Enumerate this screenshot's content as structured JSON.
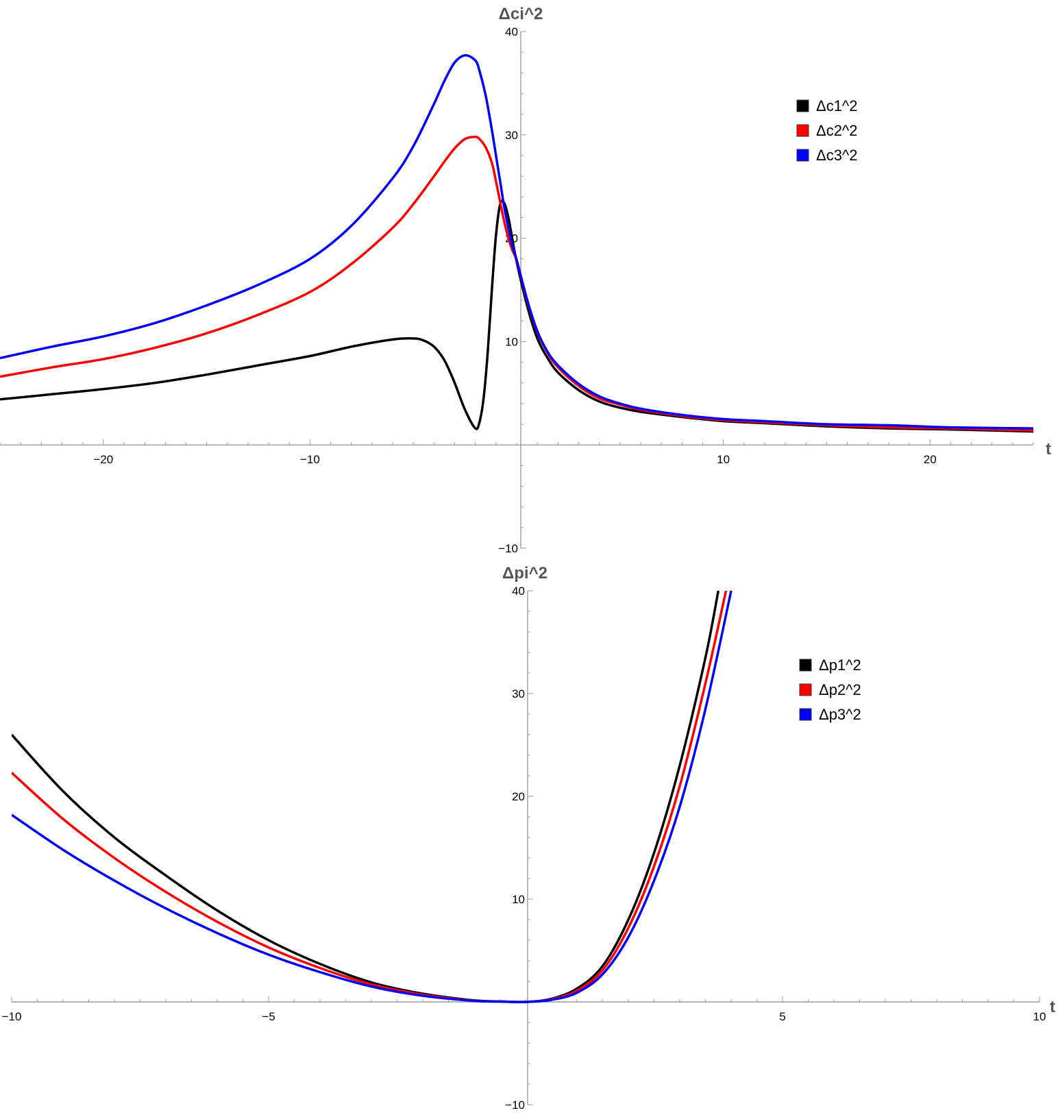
{
  "chart_data": [
    {
      "type": "line",
      "ylabel": "Δci^2",
      "xlabel": "t",
      "xlim": [
        -25,
        25
      ],
      "ylim": [
        -10,
        40
      ],
      "x_ticks": [
        -20,
        -10,
        10,
        20
      ],
      "y_ticks": [
        -10,
        10,
        20,
        30,
        40
      ],
      "legend_position": "top-right",
      "series": [
        {
          "name": "Δc1^2",
          "color": "#000000",
          "x": [
            -25,
            -22.5,
            -20,
            -17.5,
            -15,
            -12.5,
            -10,
            -8,
            -6,
            -5,
            -4.5,
            -4,
            -3.5,
            -3,
            -2.5,
            -2,
            -1.8,
            -1.6,
            -1.4,
            -1.2,
            -1,
            -0.8,
            -0.6,
            -0.4,
            -0.2,
            0,
            0.5,
            1,
            1.5,
            2,
            3,
            4,
            5,
            6,
            8,
            10,
            12,
            15,
            18,
            21,
            25
          ],
          "y": [
            4.4,
            4.9,
            5.4,
            6.0,
            6.8,
            7.7,
            8.6,
            9.5,
            10.2,
            10.3,
            10.1,
            9.5,
            8.2,
            6.0,
            3.4,
            1.6,
            2.2,
            4.5,
            9.0,
            15.0,
            20.3,
            23.3,
            23.4,
            22.0,
            19.8,
            17.7,
            13.5,
            10.3,
            8.4,
            7.0,
            5.3,
            4.2,
            3.6,
            3.2,
            2.7,
            2.3,
            2.1,
            1.8,
            1.6,
            1.5,
            1.3
          ]
        },
        {
          "name": "Δc2^2",
          "color": "#ff0000",
          "x": [
            -25,
            -22.5,
            -20,
            -17.5,
            -15,
            -12.5,
            -10,
            -8,
            -6,
            -5,
            -4,
            -3.5,
            -3,
            -2.5,
            -2,
            -1.8,
            -1.5,
            -1.2,
            -1,
            -0.8,
            -0.6,
            -0.4,
            -0.2,
            0,
            0.5,
            1,
            1.5,
            2,
            3,
            4,
            5,
            6,
            8,
            10,
            12,
            15,
            18,
            21,
            25
          ],
          "y": [
            6.6,
            7.5,
            8.3,
            9.4,
            10.8,
            12.6,
            14.8,
            17.5,
            21.0,
            23.3,
            26.0,
            27.4,
            28.7,
            29.6,
            29.8,
            29.6,
            28.8,
            27.3,
            25.5,
            23.5,
            21.6,
            20.0,
            18.8,
            17.8,
            14.0,
            10.9,
            8.9,
            7.5,
            5.7,
            4.5,
            3.9,
            3.4,
            2.8,
            2.4,
            2.2,
            1.9,
            1.7,
            1.6,
            1.4
          ]
        },
        {
          "name": "Δc3^2",
          "color": "#0000ff",
          "x": [
            -25,
            -22.5,
            -20,
            -17.5,
            -15,
            -12.5,
            -10,
            -8,
            -6,
            -5,
            -4,
            -3.5,
            -3,
            -2.5,
            -2,
            -1.8,
            -1.5,
            -1.2,
            -1,
            -0.8,
            -0.6,
            -0.4,
            -0.2,
            0,
            0.5,
            1,
            1.5,
            2,
            3,
            4,
            5,
            6,
            8,
            10,
            12,
            15,
            18,
            21,
            25
          ],
          "y": [
            8.4,
            9.5,
            10.5,
            11.8,
            13.5,
            15.5,
            18.0,
            21.2,
            25.8,
            28.9,
            33.0,
            35.2,
            37.0,
            37.7,
            37.2,
            36.2,
            33.8,
            30.5,
            28.0,
            25.5,
            23.0,
            21.0,
            19.2,
            17.9,
            14.1,
            11.0,
            9.0,
            7.7,
            5.9,
            4.7,
            4.0,
            3.5,
            2.9,
            2.5,
            2.3,
            2.0,
            1.9,
            1.7,
            1.6
          ]
        }
      ]
    },
    {
      "type": "line",
      "ylabel": "Δpi^2",
      "xlabel": "t",
      "xlim": [
        -10,
        10
      ],
      "ylim": [
        -10,
        40
      ],
      "x_ticks": [
        -10,
        -5,
        5,
        10
      ],
      "y_ticks": [
        -10,
        10,
        20,
        30,
        40
      ],
      "legend_position": "top-right",
      "series": [
        {
          "name": "Δp1^2",
          "color": "#000000",
          "x": [
            -10,
            -9,
            -8,
            -7,
            -6,
            -5,
            -4,
            -3,
            -2,
            -1,
            -0.5,
            0,
            0.5,
            1,
            1.5,
            2,
            2.5,
            3,
            3.5,
            3.75
          ],
          "y": [
            26.0,
            20.5,
            16.0,
            12.3,
            8.9,
            6.0,
            3.7,
            1.9,
            0.8,
            0.15,
            0.05,
            0,
            0.3,
            1.3,
            3.5,
            8.0,
            14.5,
            23.0,
            33.5,
            40.0
          ]
        },
        {
          "name": "Δp2^2",
          "color": "#ff0000",
          "x": [
            -10,
            -9,
            -8,
            -7,
            -6,
            -5,
            -4,
            -3,
            -2,
            -1,
            -0.5,
            0,
            0.5,
            1,
            1.5,
            2,
            2.5,
            3,
            3.5,
            3.9
          ],
          "y": [
            22.3,
            17.8,
            14.0,
            10.7,
            7.8,
            5.3,
            3.3,
            1.7,
            0.7,
            0.12,
            0.04,
            0,
            0.25,
            1.1,
            3.1,
            7.2,
            13.2,
            21.0,
            31.0,
            40.0
          ]
        },
        {
          "name": "Δp3^2",
          "color": "#0000ff",
          "x": [
            -10,
            -9,
            -8,
            -7,
            -6,
            -5,
            -4,
            -3,
            -2,
            -1,
            -0.5,
            0,
            0.5,
            1,
            1.5,
            2,
            2.5,
            3,
            3.5,
            4.0
          ],
          "y": [
            18.2,
            14.8,
            11.8,
            9.1,
            6.7,
            4.6,
            2.9,
            1.5,
            0.6,
            0.1,
            0.03,
            0,
            0.2,
            0.9,
            2.7,
            6.3,
            11.8,
            19.0,
            28.5,
            40.0
          ]
        }
      ]
    }
  ]
}
